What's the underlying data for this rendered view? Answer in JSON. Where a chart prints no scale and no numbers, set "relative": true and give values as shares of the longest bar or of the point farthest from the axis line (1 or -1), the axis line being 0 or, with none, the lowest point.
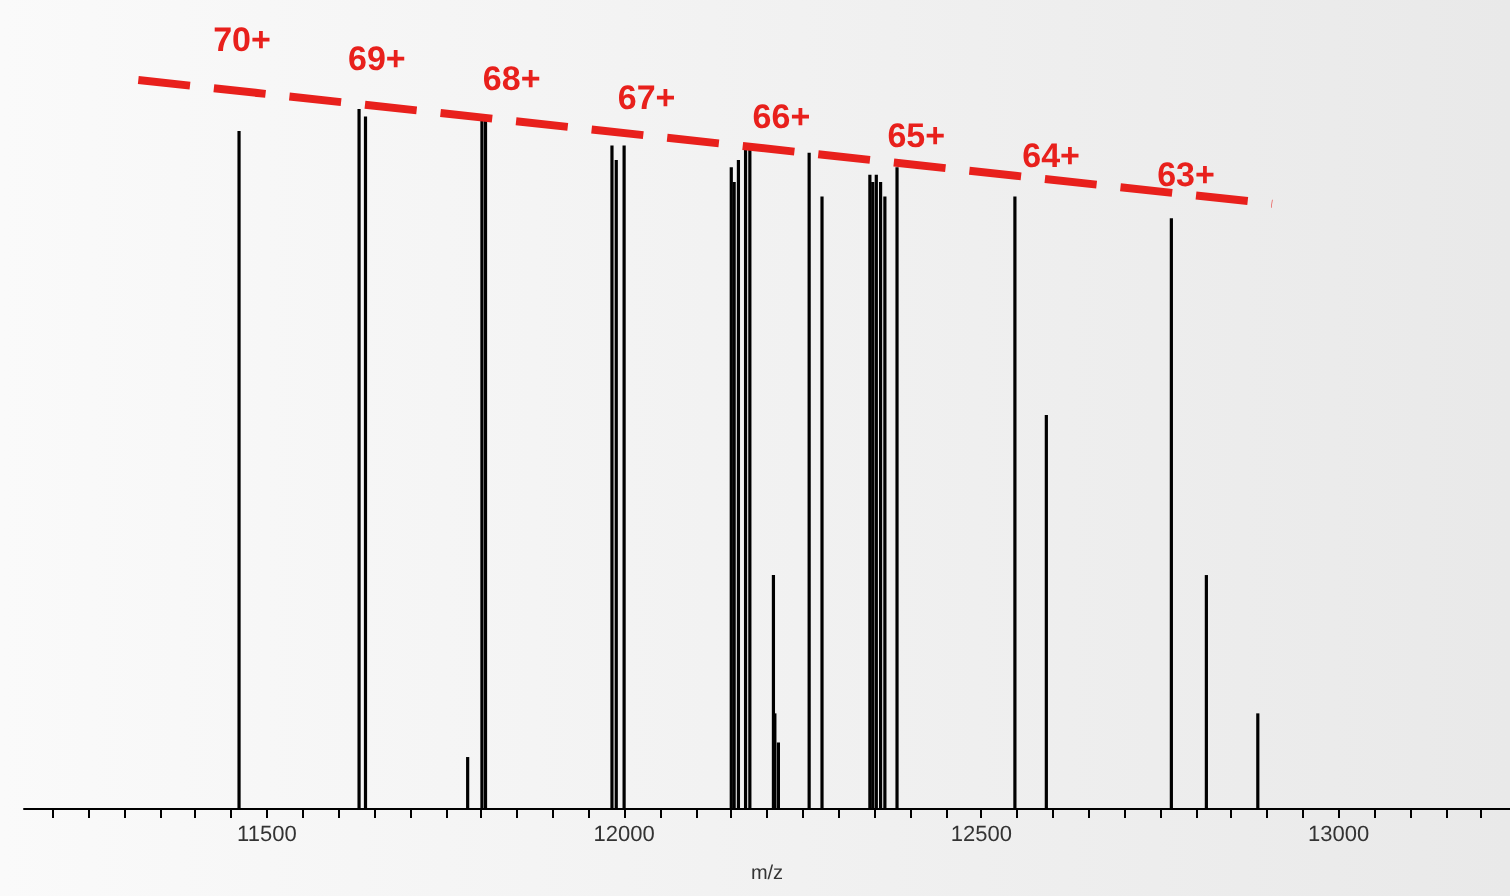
{
  "chart_data": {
    "type": "bar",
    "relative": true,
    "xlabel": "m/z",
    "series": [
      {
        "color": "#000000",
        "x": [
          11461,
          11629,
          11638,
          11781,
          11801,
          11806,
          11983,
          11989,
          12000,
          12150,
          12154,
          12160,
          12170,
          12176,
          12209,
          12211,
          12216,
          12259,
          12277,
          12344,
          12348,
          12353,
          12359,
          12365,
          12382,
          12547,
          12591,
          12766,
          12815,
          12887
        ],
        "values": [
          0.93,
          0.96,
          0.95,
          0.07,
          0.95,
          0.95,
          0.91,
          0.89,
          0.91,
          0.88,
          0.86,
          0.89,
          0.91,
          0.91,
          0.32,
          0.13,
          0.09,
          0.9,
          0.84,
          0.87,
          0.86,
          0.87,
          0.86,
          0.84,
          0.88,
          0.84,
          0.54,
          0.81,
          0.32,
          0.13
        ]
      },
      {
        "type": "line",
        "color": "#e8201c",
        "line_style": "dashed",
        "marker": "none",
        "x": [
          11320,
          12907
        ],
        "values": [
          1.0,
          0.83
        ]
      }
    ],
    "xlim": [
      11160,
      13240
    ],
    "xticks": [
      {
        "value": 11200,
        "label": null
      },
      {
        "value": 11250,
        "label": null
      },
      {
        "value": 11300,
        "label": null
      },
      {
        "value": 11350,
        "label": null
      },
      {
        "value": 11400,
        "label": null
      },
      {
        "value": 11450,
        "label": null
      },
      11500,
      {
        "value": 11550,
        "label": null
      },
      {
        "value": 11600,
        "label": null
      },
      {
        "value": 11650,
        "label": null
      },
      {
        "value": 11700,
        "label": null
      },
      {
        "value": 11750,
        "label": null
      },
      {
        "value": 11800,
        "label": null
      },
      {
        "value": 11850,
        "label": null
      },
      {
        "value": 11900,
        "label": null
      },
      {
        "value": 11950,
        "label": null
      },
      12000,
      {
        "value": 12050,
        "label": null
      },
      {
        "value": 12100,
        "label": null
      },
      {
        "value": 12150,
        "label": null
      },
      {
        "value": 12200,
        "label": null
      },
      {
        "value": 12250,
        "label": null
      },
      {
        "value": 12300,
        "label": null
      },
      {
        "value": 12350,
        "label": null
      },
      {
        "value": 12400,
        "label": null
      },
      {
        "value": 12450,
        "label": null
      },
      12500,
      {
        "value": 12550,
        "label": null
      },
      {
        "value": 12600,
        "label": null
      },
      {
        "value": 12650,
        "label": null
      },
      {
        "value": 12700,
        "label": null
      },
      {
        "value": 12750,
        "label": null
      },
      {
        "value": 12800,
        "label": null
      },
      {
        "value": 12850,
        "label": null
      },
      {
        "value": 12900,
        "label": null
      },
      {
        "value": 12950,
        "label": null
      },
      13000,
      {
        "value": 13050,
        "label": null
      },
      {
        "value": 13100,
        "label": null
      },
      {
        "value": 13150,
        "label": null
      },
      {
        "value": 13200,
        "label": null
      }
    ],
    "annotations": [
      "70+",
      "69+",
      "68+",
      "67+",
      "66+",
      "65+",
      "64+",
      "63+"
    ],
    "grid": false
  }
}
